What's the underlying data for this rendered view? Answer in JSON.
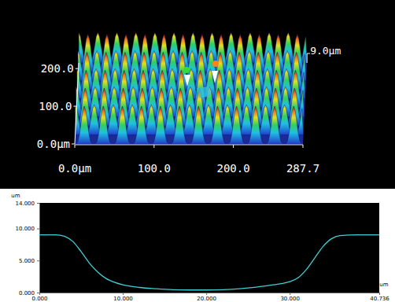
{
  "chart_data": [
    {
      "type": "surface3d",
      "xlim": [
        0,
        287.7
      ],
      "xticks": [
        {
          "value": 0,
          "label": "0.0μm"
        },
        {
          "value": 100,
          "label": "100.0"
        },
        {
          "value": 200,
          "label": "200.0"
        },
        {
          "value": 287.7,
          "label": "287.7"
        }
      ],
      "ylim": [
        0,
        215
      ],
      "yticks": [
        {
          "value": 0,
          "label": "0.0μm"
        },
        {
          "value": 100,
          "label": "100.0"
        },
        {
          "value": 200,
          "label": "200.0"
        }
      ],
      "zlim": [
        0,
        9.0
      ],
      "zticks": [
        {
          "value": 9.0,
          "label": "9.0μm"
        }
      ]
    },
    {
      "type": "line",
      "xlabel": "um",
      "ylabel": "um",
      "x": [
        0,
        2,
        3,
        4,
        5,
        6,
        7,
        8,
        9,
        10,
        12,
        14,
        16,
        18,
        20,
        22,
        24,
        26,
        28,
        29,
        30,
        31,
        32,
        33,
        34,
        35,
        36,
        38,
        40.736
      ],
      "values": [
        9.0,
        9.0,
        8.8,
        8.0,
        6.4,
        4.6,
        3.2,
        2.2,
        1.6,
        1.2,
        0.8,
        0.6,
        0.45,
        0.4,
        0.4,
        0.45,
        0.6,
        0.85,
        1.2,
        1.4,
        1.7,
        2.3,
        3.6,
        5.4,
        7.2,
        8.4,
        8.9,
        9.0,
        9.0
      ],
      "color": "#3fd0d4",
      "xlim": [
        0,
        40.736
      ],
      "xticks": [
        {
          "value": 0,
          "label": "0.000"
        },
        {
          "value": 10,
          "label": "10.000"
        },
        {
          "value": 20,
          "label": "20.000"
        },
        {
          "value": 30,
          "label": "30.000"
        },
        {
          "value": 40.736,
          "label": "40.736"
        }
      ],
      "ylim": [
        0,
        14
      ],
      "yticks": [
        {
          "value": 0,
          "label": "0.000"
        },
        {
          "value": 5,
          "label": "5.000"
        },
        {
          "value": 10,
          "label": "10.000"
        },
        {
          "value": 14,
          "label": "14.000"
        }
      ]
    }
  ]
}
